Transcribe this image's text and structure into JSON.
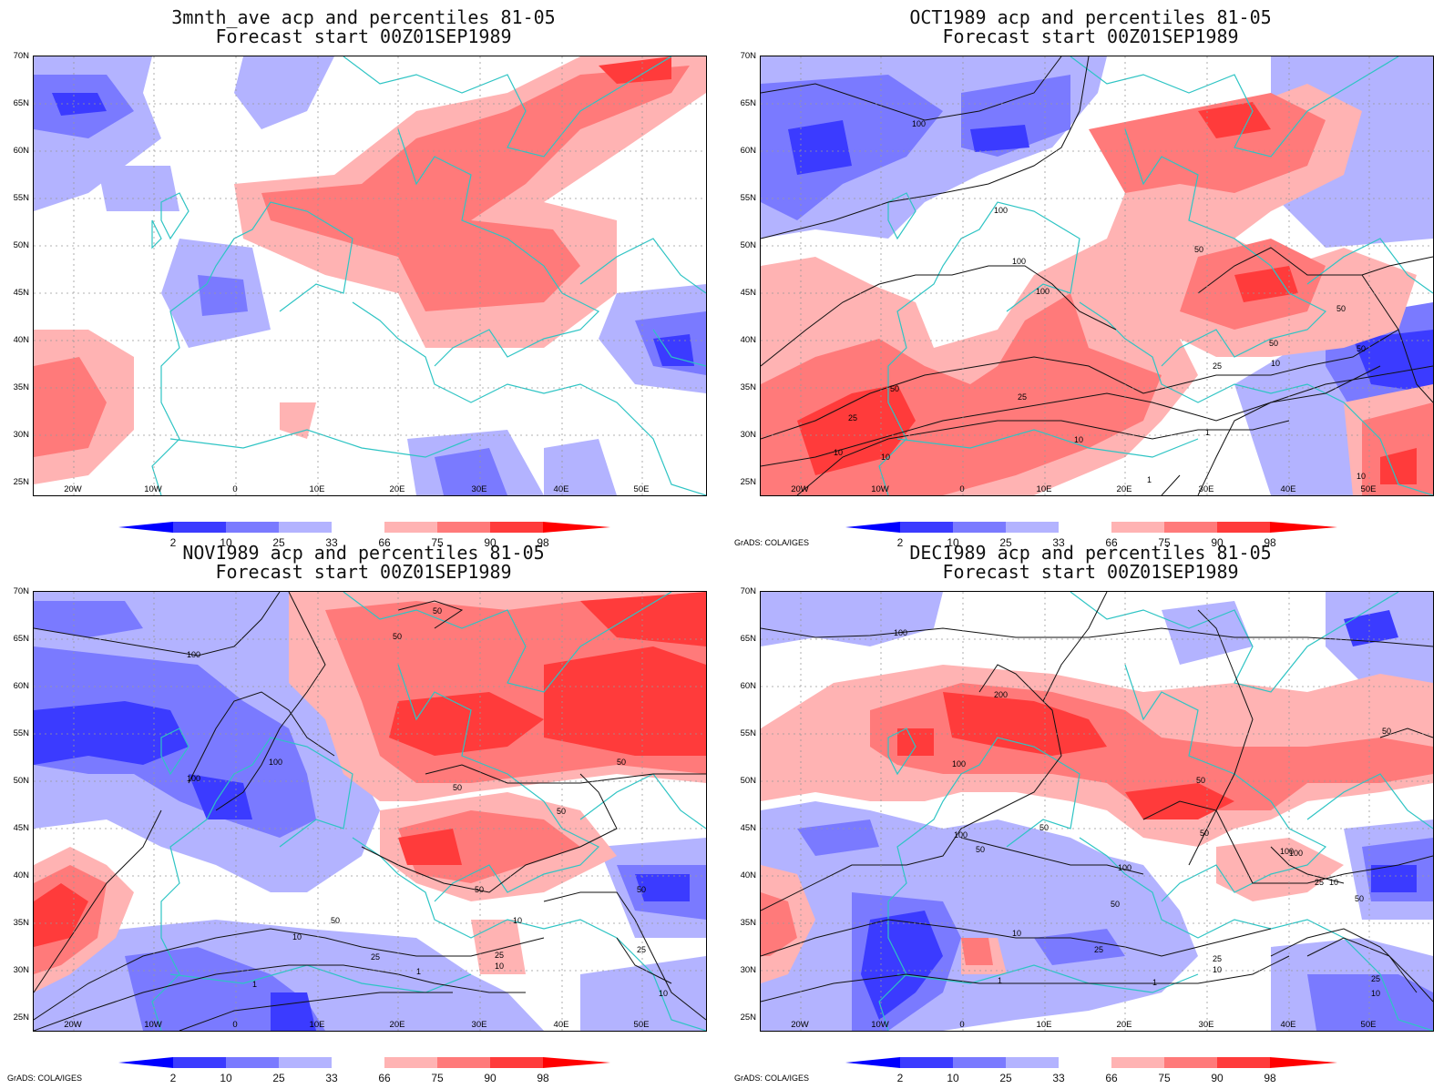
{
  "panels": [
    {
      "title1": "3mnth_ave acp and percentiles 81-05",
      "title2": "Forecast start 00Z01SEP1989",
      "credit": ""
    },
    {
      "title1": "OCT1989 acp and percentiles 81-05",
      "title2": "Forecast start 00Z01SEP1989",
      "credit": "GrADS: COLA/IGES"
    },
    {
      "title1": "NOV1989 acp and percentiles 81-05",
      "title2": "Forecast start 00Z01SEP1989",
      "credit": "GrADS: COLA/IGES"
    },
    {
      "title1": "DEC1989 acp and percentiles 81-05",
      "title2": "Forecast start 00Z01SEP1989",
      "credit": "GrADS: COLA/IGES"
    }
  ],
  "y_axis_labels": [
    "70N",
    "65N",
    "60N",
    "55N",
    "50N",
    "45N",
    "40N",
    "35N",
    "30N",
    "25N"
  ],
  "x_axis_labels": [
    "20W",
    "10W",
    "0",
    "10E",
    "20E",
    "30E",
    "40E",
    "50E"
  ],
  "colorbar": {
    "labels": [
      "2",
      "10",
      "25",
      "33",
      "66",
      "75",
      "90",
      "98"
    ],
    "colors": [
      "#0000ff",
      "#3b3bff",
      "#7a7aff",
      "#b3b3ff",
      "#ffffff",
      "#ffb3b3",
      "#ff7a7a",
      "#ff3b3b",
      "#ff0000"
    ]
  },
  "contour_labels": {
    "oct": [
      "100",
      "100",
      "100",
      "100",
      "50",
      "50",
      "50",
      "25",
      "25",
      "10",
      "10",
      "10",
      "1",
      "50",
      "25",
      "10",
      "50",
      "10",
      "1"
    ],
    "nov": [
      "50",
      "50",
      "100",
      "100",
      "100",
      "50",
      "50",
      "50",
      "50",
      "50",
      "25",
      "25",
      "10",
      "10",
      "10",
      "1",
      "1",
      "50",
      "25",
      "10"
    ],
    "dec": [
      "100",
      "200",
      "100",
      "100",
      "50",
      "50",
      "100",
      "50",
      "100",
      "25",
      "50",
      "50",
      "25",
      "10",
      "25",
      "10",
      "1",
      "1",
      "50",
      "25",
      "10",
      "50",
      "10",
      "100"
    ]
  }
}
